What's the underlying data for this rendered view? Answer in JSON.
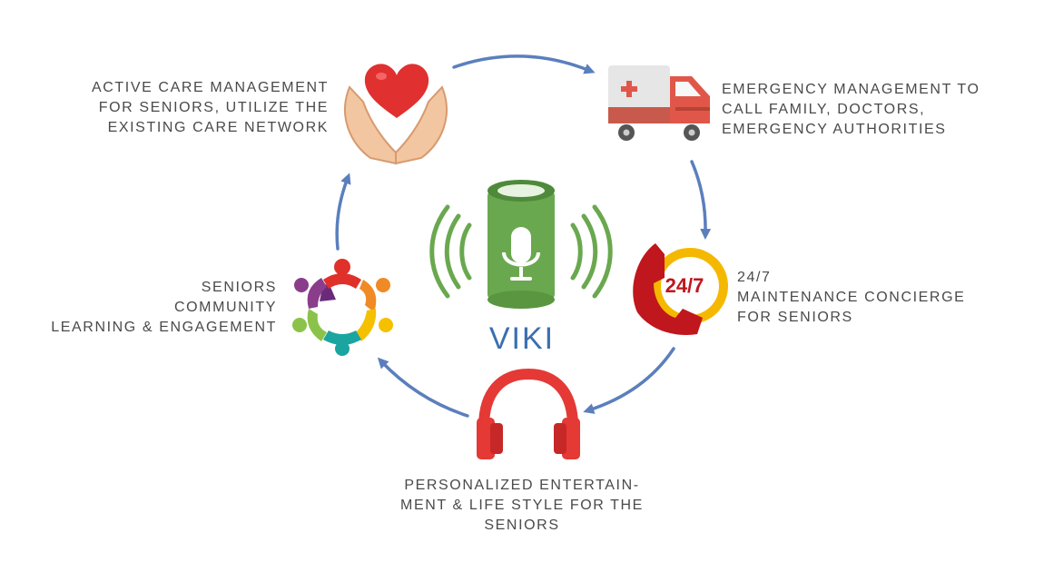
{
  "center": {
    "title": "VIKI",
    "icon": "smart-speaker-microphone-icon"
  },
  "nodes": {
    "active_care": {
      "icon": "heart-in-hands-icon",
      "lines": [
        "ACTIVE CARE MANAGEMENT",
        "FOR SENIORS, UTILIZE THE",
        "EXISTING CARE NETWORK"
      ]
    },
    "emergency": {
      "icon": "ambulance-icon",
      "lines": [
        "EMERGENCY MANAGEMENT TO",
        "CALL FAMILY, DOCTORS,",
        "EMERGENCY AUTHORITIES"
      ]
    },
    "maintenance": {
      "icon": "24-7-phone-icon",
      "badge": "24/7",
      "lines": [
        "24/7",
        "MAINTENANCE CONCIERGE",
        "FOR SENIORS"
      ]
    },
    "entertainment": {
      "icon": "headphones-icon",
      "lines": [
        "PERSONALIZED ENTERTAIN-",
        "MENT & LIFE STYLE FOR THE",
        "SENIORS"
      ]
    },
    "community": {
      "icon": "community-circle-icon",
      "lines": [
        "SENIORS",
        "COMMUNITY",
        "LEARNING & ENGAGEMENT"
      ]
    }
  },
  "colors": {
    "arrow": "#5b7fbd",
    "text": "#4a4a4a",
    "title": "#3a6fb0",
    "speaker_green": "#6aa84f",
    "heart_red": "#e03030",
    "ambulance_red": "#e0574a",
    "headphones_red": "#e53935",
    "phone_red": "#c0161d",
    "clock_yellow": "#f5b800"
  }
}
